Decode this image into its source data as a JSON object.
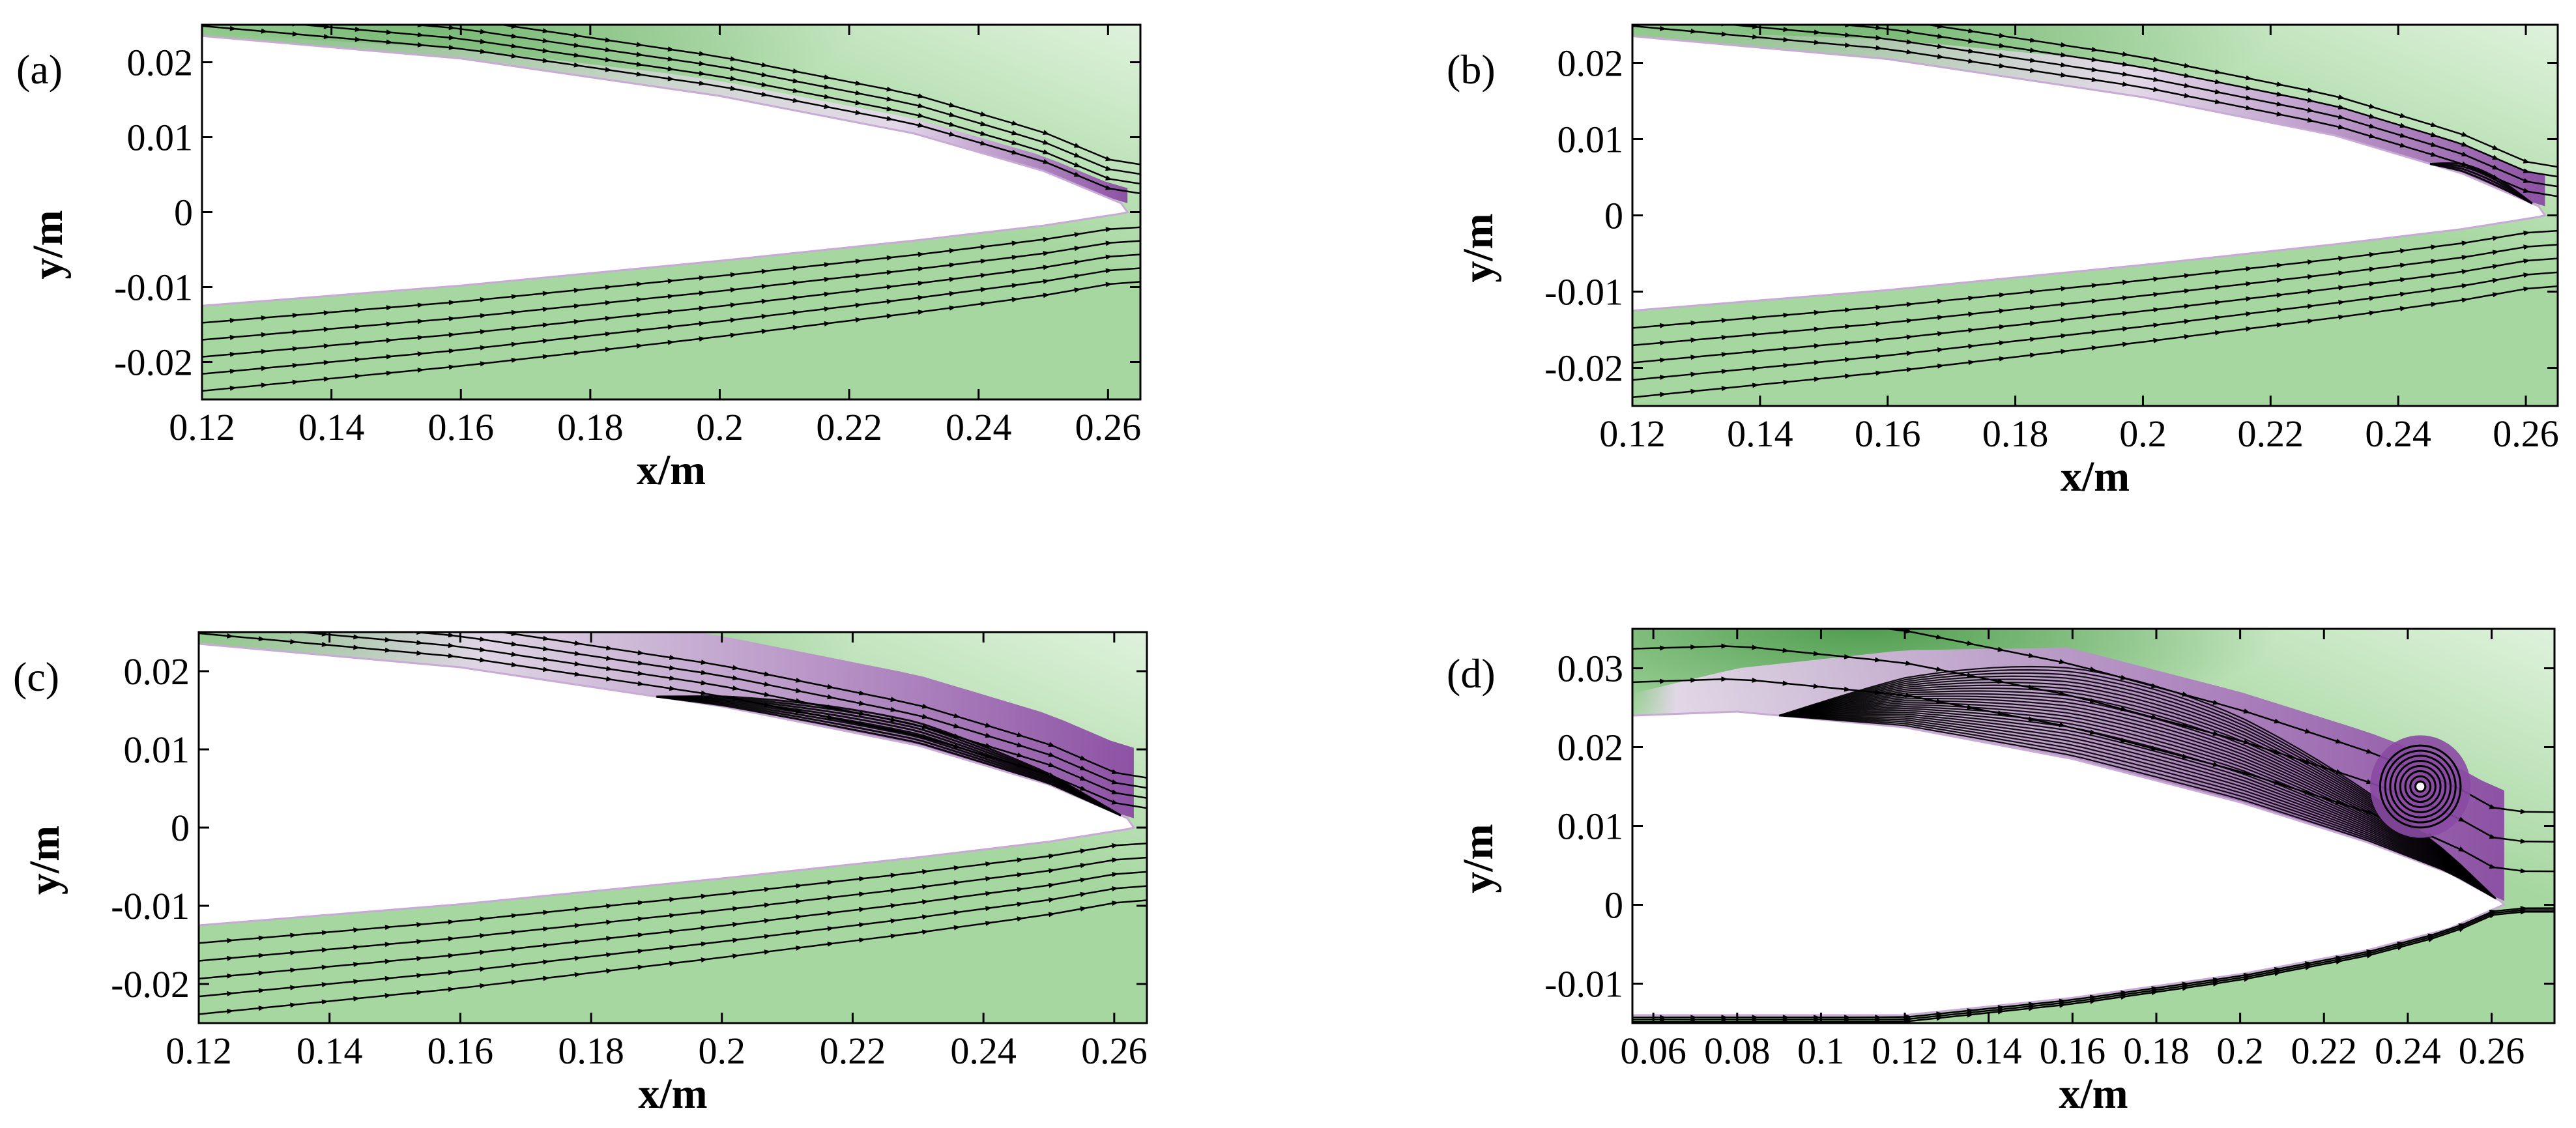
{
  "figure_description_colors": {
    "green_dark": "#4c9a4c",
    "green_mid": "#a6d7a0",
    "green_light": "#dff2dc",
    "purple_dark": "#5e1f73",
    "purple_mid": "#8a4aa3",
    "purple_light": "#e9d8ef",
    "streamline": "#000000"
  },
  "chart_data": [
    {
      "type": "streamline-contour",
      "panel_label": "(a)",
      "xlabel": "x/m",
      "ylabel": "y/m",
      "xlim": [
        0.12,
        0.265
      ],
      "ylim": [
        -0.025,
        0.025
      ],
      "xticks": [
        0.12,
        0.14,
        0.16,
        0.18,
        0.2,
        0.22,
        0.24,
        0.26
      ],
      "xtick_labels": [
        "0.12",
        "0.14",
        "0.16",
        "0.18",
        "0.2",
        "0.22",
        "0.24",
        "0.26"
      ],
      "yticks": [
        0.02,
        0.01,
        0,
        -0.01,
        -0.02
      ],
      "ytick_labels": [
        "0.02",
        "0.01",
        "0",
        "-0.01",
        "-0.02"
      ],
      "body_upper": [
        [
          0.12,
          0.0235
        ],
        [
          0.16,
          0.0205
        ],
        [
          0.2,
          0.0155
        ],
        [
          0.23,
          0.0105
        ],
        [
          0.25,
          0.0055
        ],
        [
          0.262,
          0.0012
        ]
      ],
      "body_lower": [
        [
          0.12,
          -0.0125
        ],
        [
          0.16,
          -0.0098
        ],
        [
          0.2,
          -0.0065
        ],
        [
          0.23,
          -0.0038
        ],
        [
          0.25,
          -0.0018
        ],
        [
          0.262,
          -0.0002
        ]
      ],
      "te": [
        0.263,
        0.0
      ],
      "separation_start_x": null,
      "vortex": null
    },
    {
      "type": "streamline-contour",
      "panel_label": "(b)",
      "xlabel": "x/m",
      "ylabel": "y/m",
      "xlim": [
        0.12,
        0.265
      ],
      "ylim": [
        -0.025,
        0.025
      ],
      "xticks": [
        0.12,
        0.14,
        0.16,
        0.18,
        0.2,
        0.22,
        0.24,
        0.26
      ],
      "xtick_labels": [
        "0.12",
        "0.14",
        "0.16",
        "0.18",
        "0.2",
        "0.22",
        "0.24",
        "0.26"
      ],
      "yticks": [
        0.02,
        0.01,
        0,
        -0.01,
        -0.02
      ],
      "ytick_labels": [
        "0.02",
        "0.01",
        "0",
        "-0.01",
        "-0.02"
      ],
      "body_upper": [
        [
          0.12,
          0.0235
        ],
        [
          0.16,
          0.0205
        ],
        [
          0.2,
          0.0155
        ],
        [
          0.23,
          0.0105
        ],
        [
          0.25,
          0.0055
        ],
        [
          0.262,
          0.0012
        ]
      ],
      "body_lower": [
        [
          0.12,
          -0.0125
        ],
        [
          0.16,
          -0.0098
        ],
        [
          0.2,
          -0.0065
        ],
        [
          0.23,
          -0.0038
        ],
        [
          0.25,
          -0.0018
        ],
        [
          0.262,
          -0.0002
        ]
      ],
      "te": [
        0.263,
        0.0
      ],
      "separation_start_x": 0.245,
      "vortex": null
    },
    {
      "type": "streamline-contour",
      "panel_label": "(c)",
      "xlabel": "x/m",
      "ylabel": "y/m",
      "xlim": [
        0.12,
        0.265
      ],
      "ylim": [
        -0.025,
        0.025
      ],
      "xticks": [
        0.12,
        0.14,
        0.16,
        0.18,
        0.2,
        0.22,
        0.24,
        0.26
      ],
      "xtick_labels": [
        "0.12",
        "0.14",
        "0.16",
        "0.18",
        "0.2",
        "0.22",
        "0.24",
        "0.26"
      ],
      "yticks": [
        0.02,
        0.01,
        0,
        -0.01,
        -0.02
      ],
      "ytick_labels": [
        "0.02",
        "0.01",
        "0",
        "-0.01",
        "-0.02"
      ],
      "body_upper": [
        [
          0.12,
          0.0235
        ],
        [
          0.16,
          0.0205
        ],
        [
          0.2,
          0.0155
        ],
        [
          0.23,
          0.0105
        ],
        [
          0.25,
          0.0055
        ],
        [
          0.262,
          0.0012
        ]
      ],
      "body_lower": [
        [
          0.12,
          -0.0125
        ],
        [
          0.16,
          -0.0098
        ],
        [
          0.2,
          -0.0065
        ],
        [
          0.23,
          -0.0038
        ],
        [
          0.25,
          -0.0018
        ],
        [
          0.262,
          -0.0002
        ]
      ],
      "te": [
        0.263,
        0.0
      ],
      "separation_start_x": 0.19,
      "vortex": null
    },
    {
      "type": "streamline-contour",
      "panel_label": "(d)",
      "xlabel": "x/m",
      "ylabel": "y/m",
      "xlim": [
        0.055,
        0.275
      ],
      "ylim": [
        -0.015,
        0.035
      ],
      "xticks": [
        0.06,
        0.08,
        0.1,
        0.12,
        0.14,
        0.16,
        0.18,
        0.2,
        0.22,
        0.24,
        0.26
      ],
      "xtick_labels": [
        "0.06",
        "0.08",
        "0.1",
        "0.12",
        "0.14",
        "0.16",
        "0.18",
        "0.2",
        "0.22",
        "0.24",
        "0.26"
      ],
      "yticks": [
        0.03,
        0.02,
        0.01,
        0,
        -0.01
      ],
      "ytick_labels": [
        "0.03",
        "0.02",
        "0.01",
        "0",
        "-0.01"
      ],
      "body_upper": [
        [
          0.055,
          0.024
        ],
        [
          0.08,
          0.0245
        ],
        [
          0.12,
          0.0225
        ],
        [
          0.16,
          0.0185
        ],
        [
          0.2,
          0.013
        ],
        [
          0.23,
          0.008
        ],
        [
          0.25,
          0.004
        ],
        [
          0.262,
          0.0005
        ]
      ],
      "body_lower": [
        [
          0.12,
          -0.014
        ],
        [
          0.16,
          -0.0118
        ],
        [
          0.2,
          -0.0088
        ],
        [
          0.23,
          -0.0058
        ],
        [
          0.25,
          -0.003
        ],
        [
          0.262,
          -0.0002
        ]
      ],
      "te": [
        0.263,
        0.0
      ],
      "separation_start_x": 0.09,
      "vortex": {
        "center": [
          0.243,
          0.015
        ],
        "rx": 0.012,
        "ry": 0.0065
      }
    }
  ]
}
